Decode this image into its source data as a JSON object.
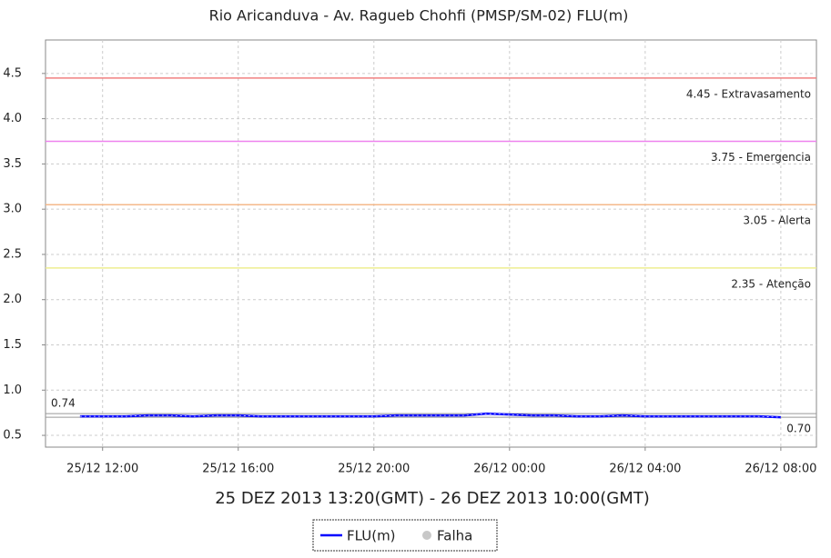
{
  "chart_data": {
    "type": "line",
    "title": "Rio Aricanduva - Av. Ragueb Chohfi (PMSP/SM-02) FLU(m)",
    "subtitle": "25 DEZ 2013 13:20(GMT) - 26 DEZ 2013 10:00(GMT)",
    "x": [
      "2013-12-25T11:20",
      "2013-12-25T12:00",
      "2013-12-25T12:40",
      "2013-12-25T13:20",
      "2013-12-25T14:00",
      "2013-12-25T14:40",
      "2013-12-25T15:20",
      "2013-12-25T16:00",
      "2013-12-25T16:40",
      "2013-12-25T17:20",
      "2013-12-25T18:00",
      "2013-12-25T18:40",
      "2013-12-25T19:20",
      "2013-12-25T20:00",
      "2013-12-25T20:40",
      "2013-12-25T21:20",
      "2013-12-25T22:00",
      "2013-12-25T22:40",
      "2013-12-25T23:20",
      "2013-12-26T00:00",
      "2013-12-26T00:40",
      "2013-12-26T01:20",
      "2013-12-26T02:00",
      "2013-12-26T02:40",
      "2013-12-26T03:20",
      "2013-12-26T04:00",
      "2013-12-26T04:40",
      "2013-12-26T05:20",
      "2013-12-26T06:00",
      "2013-12-26T06:40",
      "2013-12-26T07:20",
      "2013-12-26T08:00"
    ],
    "series": [
      {
        "name": "FLU(m)",
        "color": "#0000ff",
        "values": [
          0.71,
          0.71,
          0.71,
          0.72,
          0.72,
          0.71,
          0.72,
          0.72,
          0.71,
          0.71,
          0.71,
          0.71,
          0.71,
          0.71,
          0.72,
          0.72,
          0.72,
          0.72,
          0.74,
          0.73,
          0.72,
          0.72,
          0.71,
          0.71,
          0.72,
          0.71,
          0.71,
          0.71,
          0.71,
          0.71,
          0.71,
          0.7
        ]
      }
    ],
    "legend_extra": {
      "name": "Falha",
      "color": "#c8c8c8"
    },
    "xlim": [
      "2013-12-25T10:19",
      "2013-12-26T09:03"
    ],
    "xticks": [
      {
        "value": "2013-12-25T12:00",
        "label": "25/12 12:00"
      },
      {
        "value": "2013-12-25T16:00",
        "label": "25/12 16:00"
      },
      {
        "value": "2013-12-25T20:00",
        "label": "25/12 20:00"
      },
      {
        "value": "2013-12-26T00:00",
        "label": "26/12 00:00"
      },
      {
        "value": "2013-12-26T04:00",
        "label": "26/12 04:00"
      },
      {
        "value": "2013-12-26T08:00",
        "label": "26/12 08:00"
      }
    ],
    "ylim": [
      0.37,
      4.87
    ],
    "yticks": [
      0.5,
      {
        "value": 1,
        "label": "1.0"
      },
      1.5,
      {
        "value": 2,
        "label": "2.0"
      },
      2.5,
      {
        "value": 3,
        "label": "3.0"
      },
      3.5,
      {
        "value": 4,
        "label": "4.0"
      },
      4.5
    ],
    "grid": true,
    "thresholds": [
      {
        "value": 4.45,
        "label": "4.45 - Extravasamento",
        "color": "#f08080"
      },
      {
        "value": 3.75,
        "label": "3.75 - Emergencia",
        "color": "#ee82ee"
      },
      {
        "value": 3.05,
        "label": "3.05 - Alerta",
        "color": "#f4b88a"
      },
      {
        "value": 2.35,
        "label": "2.35 - Atenção",
        "color": "#eeee90"
      }
    ],
    "reference_lines": [
      {
        "value": 0.74,
        "label": "0.74",
        "side": "left"
      },
      {
        "value": 0.7,
        "label": "0.70",
        "side": "right"
      }
    ]
  }
}
